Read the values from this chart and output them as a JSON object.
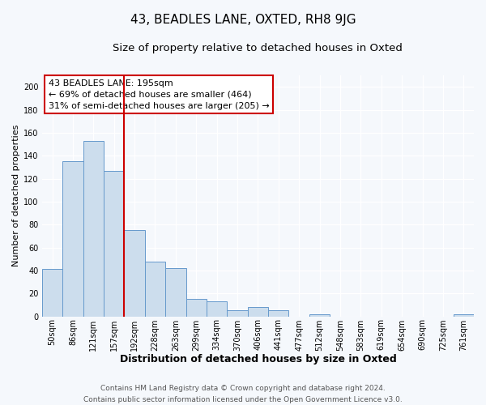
{
  "title": "43, BEADLES LANE, OXTED, RH8 9JG",
  "subtitle": "Size of property relative to detached houses in Oxted",
  "xlabel": "Distribution of detached houses by size in Oxted",
  "ylabel": "Number of detached properties",
  "footer_line1": "Contains HM Land Registry data © Crown copyright and database right 2024.",
  "footer_line2": "Contains public sector information licensed under the Open Government Licence v3.0.",
  "bin_labels": [
    "50sqm",
    "86sqm",
    "121sqm",
    "157sqm",
    "192sqm",
    "228sqm",
    "263sqm",
    "299sqm",
    "334sqm",
    "370sqm",
    "406sqm",
    "441sqm",
    "477sqm",
    "512sqm",
    "548sqm",
    "583sqm",
    "619sqm",
    "654sqm",
    "690sqm",
    "725sqm",
    "761sqm"
  ],
  "bar_heights": [
    41,
    135,
    153,
    127,
    75,
    48,
    42,
    15,
    13,
    5,
    8,
    5,
    0,
    2,
    0,
    0,
    0,
    0,
    0,
    0,
    2
  ],
  "bar_color": "#ccdded",
  "bar_edge_color": "#6699cc",
  "annotation_line1": "43 BEADLES LANE: 195sqm",
  "annotation_line2": "← 69% of detached houses are smaller (464)",
  "annotation_line3": "31% of semi-detached houses are larger (205) →",
  "vline_x": 4,
  "vline_color": "#cc0000",
  "ylim": [
    0,
    210
  ],
  "yticks": [
    0,
    20,
    40,
    60,
    80,
    100,
    120,
    140,
    160,
    180,
    200
  ],
  "bg_color": "#f5f8fc",
  "grid_color": "#ffffff",
  "title_fontsize": 11,
  "subtitle_fontsize": 9.5,
  "xlabel_fontsize": 9,
  "ylabel_fontsize": 8,
  "tick_fontsize": 7,
  "annot_fontsize": 8,
  "footer_fontsize": 6.5
}
